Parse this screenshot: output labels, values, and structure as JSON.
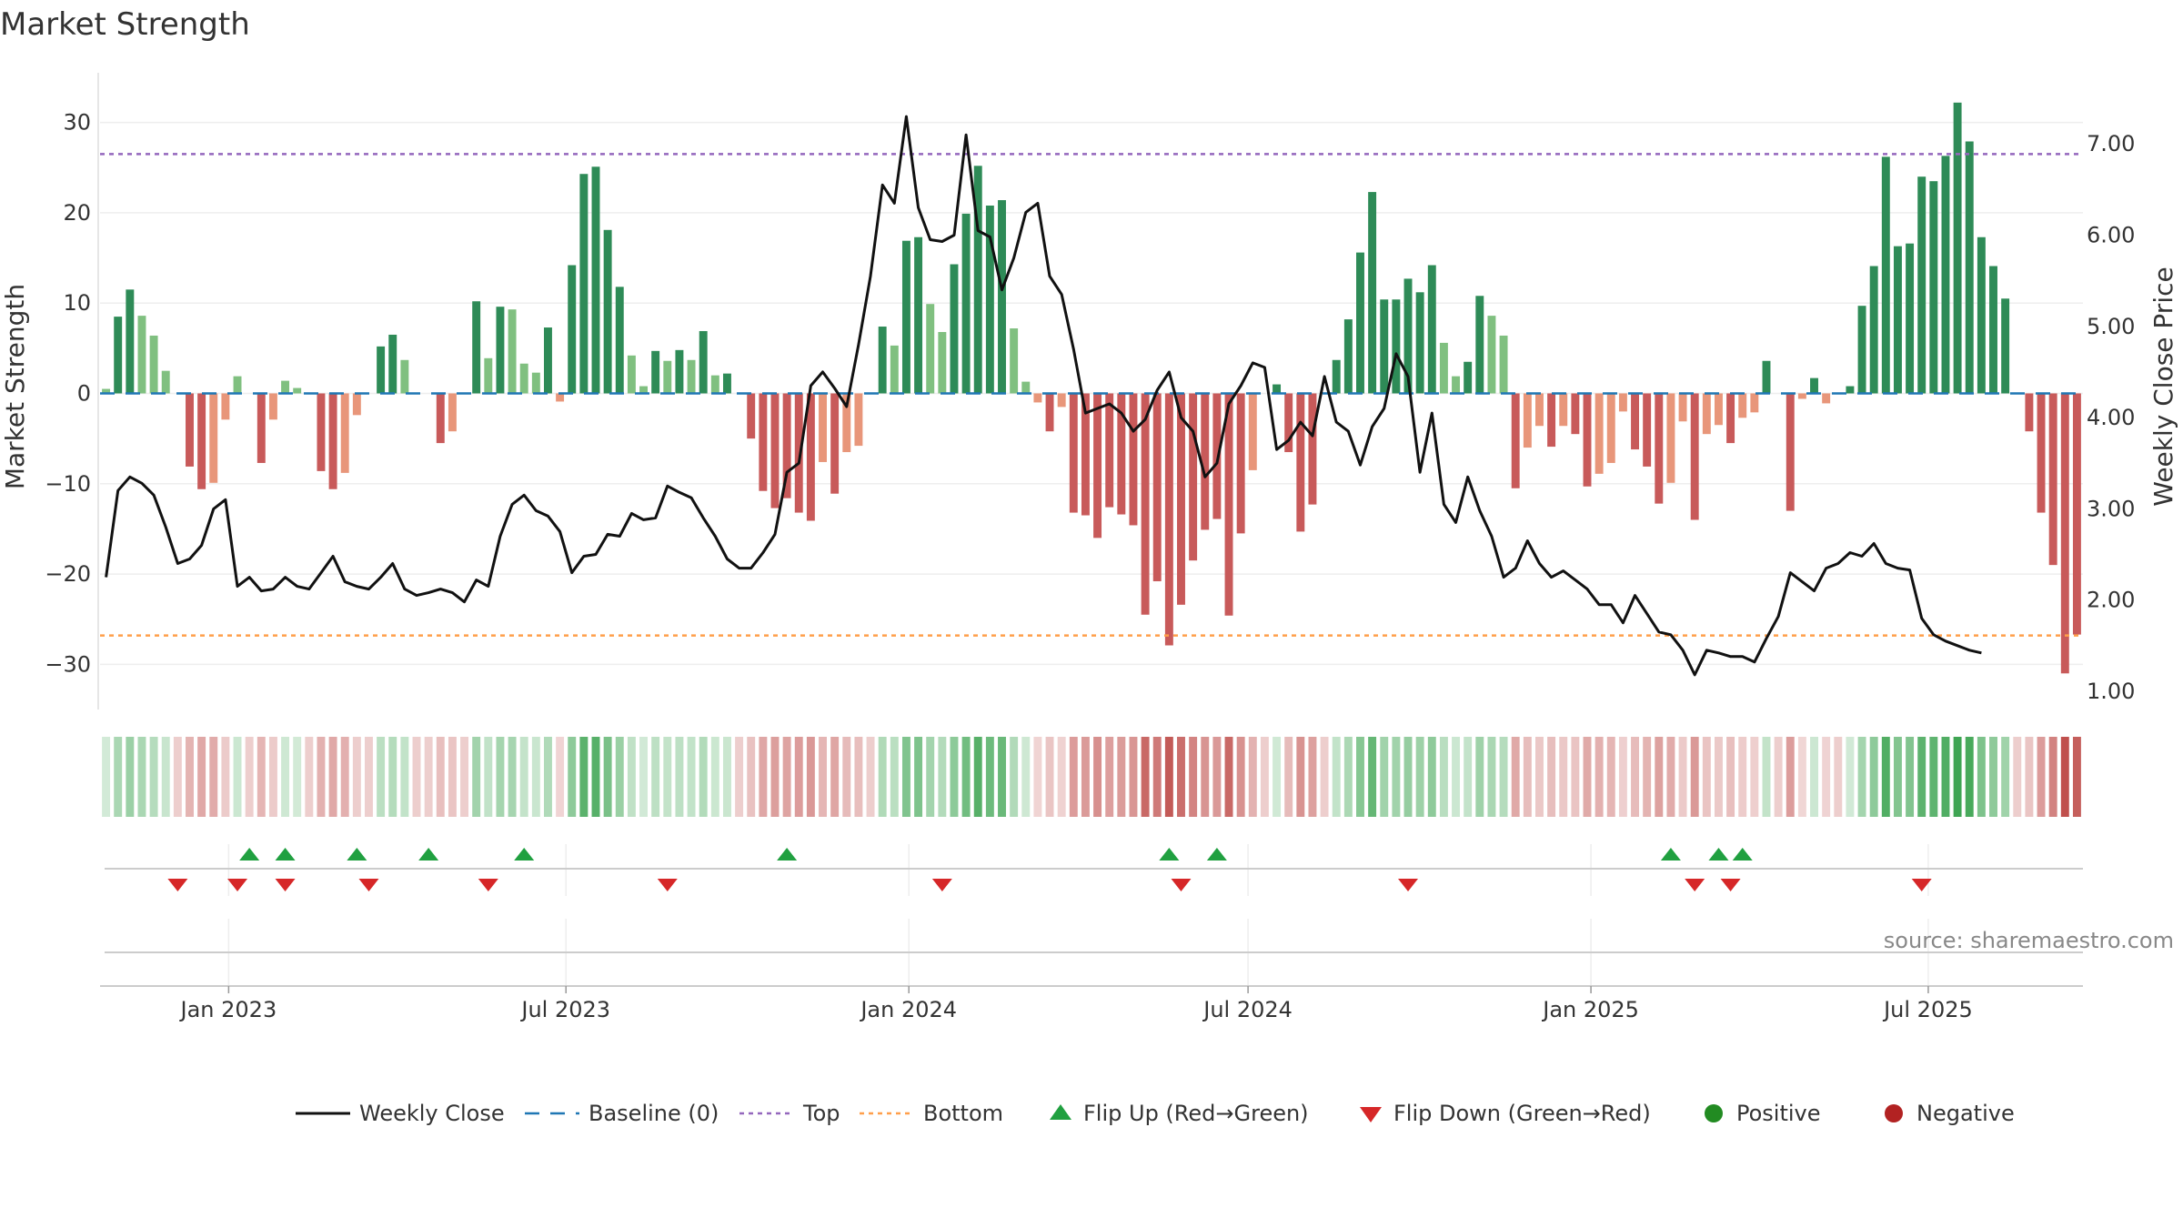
{
  "chart_data": {
    "type": "bar",
    "title": "Market Strength",
    "ylabel_left": "Market Strength",
    "ylabel_right": "Weekly Close Price",
    "source": "source: sharemaestro.com",
    "left_ylim": [
      -35,
      35
    ],
    "left_ticks": [
      30,
      20,
      10,
      0,
      -10,
      -20,
      -30
    ],
    "left_tick_labels": [
      "30",
      "20",
      "10",
      "0",
      "−10",
      "−20",
      "−30"
    ],
    "right_ylim": [
      0.8,
      7.73
    ],
    "right_ticks": [
      7.0,
      6.0,
      5.0,
      4.0,
      3.0,
      2.0,
      1.0
    ],
    "right_tick_labels": [
      "7.00",
      "6.00",
      "5.00",
      "4.00",
      "3.00",
      "2.00",
      "1.00"
    ],
    "top_level": 26.5,
    "bottom_level": -26.8,
    "x_start": "2022-10-24",
    "x_end": "2025-09-22",
    "x_tick_labels": [
      "Jan 2023",
      "Jul 2023",
      "Jan 2024",
      "Jul 2024",
      "Jan 2025",
      "Jul 2025"
    ],
    "x_tick_dates": [
      "2023-01-01",
      "2023-07-01",
      "2024-01-01",
      "2024-07-01",
      "2025-01-01",
      "2025-07-01"
    ],
    "strength": [
      0.5,
      8.5,
      11.5,
      8.6,
      6.4,
      2.5,
      -0.3,
      -8.1,
      -10.6,
      -9.9,
      -2.9,
      1.9,
      -0.3,
      -7.7,
      -2.9,
      1.4,
      0.6,
      -0.3,
      -8.6,
      -10.6,
      -8.8,
      -2.4,
      -0.3,
      5.2,
      6.5,
      3.7,
      -0.3,
      -0.3,
      -5.5,
      -4.2,
      -0.3,
      10.2,
      3.9,
      9.6,
      9.3,
      3.3,
      2.3,
      7.3,
      -0.9,
      14.2,
      24.3,
      25.1,
      18.1,
      11.8,
      4.2,
      0.8,
      4.7,
      3.6,
      4.8,
      3.7,
      6.9,
      2.0,
      2.2,
      -0.3,
      -5.0,
      -10.8,
      -12.7,
      -11.6,
      -13.2,
      -14.1,
      -7.6,
      -11.1,
      -6.5,
      -5.8,
      -0.3,
      7.4,
      5.3,
      16.9,
      17.3,
      9.9,
      6.8,
      14.3,
      19.9,
      25.2,
      20.8,
      21.4,
      7.2,
      1.3,
      -1.0,
      -4.2,
      -1.5,
      -13.2,
      -13.5,
      -16.0,
      -12.6,
      -13.4,
      -14.6,
      -24.5,
      -20.8,
      -27.9,
      -23.4,
      -18.5,
      -15.1,
      -13.9,
      -24.6,
      -15.5,
      -8.5,
      -0.3,
      1.0,
      -6.5,
      -15.3,
      -12.3,
      -0.3,
      3.7,
      8.2,
      15.6,
      22.3,
      10.4,
      10.4,
      12.7,
      11.2,
      14.2,
      5.6,
      1.9,
      3.5,
      10.8,
      8.6,
      6.4,
      -10.5,
      -6.0,
      -3.6,
      -5.9,
      -3.6,
      -4.5,
      -10.3,
      -8.9,
      -7.7,
      -2.0,
      -6.2,
      -8.1,
      -12.2,
      -9.9,
      -3.1,
      -14.0,
      -4.5,
      -3.5,
      -5.5,
      -2.7,
      -2.1,
      3.6,
      -0.3,
      -13.0,
      -0.6,
      1.7,
      -1.1,
      -0.3,
      0.8,
      9.7,
      14.1,
      26.2,
      16.3,
      16.6,
      24.0,
      23.5,
      26.3,
      32.2,
      27.9,
      17.3,
      14.1,
      10.5,
      -0.3,
      -4.2,
      -13.2,
      -19.0,
      -31.0,
      -26.7
    ],
    "weekly_close": [
      2.25,
      3.2,
      3.35,
      3.28,
      3.15,
      2.8,
      2.4,
      2.45,
      2.6,
      3.0,
      3.1,
      2.15,
      2.25,
      2.1,
      2.12,
      2.25,
      2.15,
      2.12,
      2.3,
      2.48,
      2.2,
      2.15,
      2.12,
      2.25,
      2.4,
      2.12,
      2.05,
      2.08,
      2.12,
      2.08,
      1.98,
      2.22,
      2.15,
      2.7,
      3.05,
      3.15,
      2.98,
      2.92,
      2.75,
      2.3,
      2.48,
      2.5,
      2.72,
      2.7,
      2.95,
      2.88,
      2.9,
      3.25,
      3.18,
      3.12,
      2.9,
      2.7,
      2.45,
      2.35,
      2.35,
      2.52,
      2.72,
      3.4,
      3.5,
      4.35,
      4.5,
      4.32,
      4.12,
      4.8,
      5.55,
      6.55,
      6.35,
      7.3,
      6.3,
      5.95,
      5.93,
      6.0,
      7.1,
      6.05,
      5.98,
      5.4,
      5.75,
      6.25,
      6.35,
      5.55,
      5.35,
      4.75,
      4.05,
      4.1,
      4.15,
      4.05,
      3.85,
      3.98,
      4.3,
      4.5,
      4.0,
      3.85,
      3.35,
      3.5,
      4.15,
      4.35,
      4.6,
      4.55,
      3.65,
      3.75,
      3.95,
      3.8,
      4.45,
      3.95,
      3.85,
      3.48,
      3.9,
      4.1,
      4.7,
      4.45,
      3.4,
      4.05,
      3.05,
      2.85,
      3.35,
      2.98,
      2.7,
      2.25,
      2.35,
      2.65,
      2.4,
      2.25,
      2.32,
      2.22,
      2.12,
      1.95,
      1.95,
      1.75,
      2.05,
      1.85,
      1.65,
      1.62,
      1.45,
      1.18,
      1.45,
      1.42,
      1.38,
      1.38,
      1.32,
      1.58,
      1.82,
      2.3,
      2.2,
      2.1,
      2.35,
      2.4,
      2.52,
      2.48,
      2.62,
      2.4,
      2.35,
      2.33,
      1.8,
      1.62,
      1.55,
      1.5,
      1.45,
      1.42
    ],
    "flip_up_index": [
      12,
      15,
      21,
      27,
      35,
      57,
      89,
      93,
      131,
      135,
      137
    ],
    "flip_down_index": [
      6,
      11,
      15,
      22,
      32,
      47,
      70,
      90,
      109,
      133,
      136,
      152
    ],
    "colors": {
      "positive_strong": "#2e8b57",
      "positive_weak": "#80c080",
      "negative_strong": "#c85a5a",
      "negative_weak": "#e8967a",
      "line": "#111111",
      "baseline": "#1f77b4",
      "top": "#9467bd",
      "bottom": "#ff9f4a",
      "flip_up": "#20a040",
      "flip_down": "#d62728",
      "positive_dot": "#228b22",
      "negative_dot": "#b22222"
    },
    "legend": [
      {
        "label": "Weekly Close",
        "kind": "line"
      },
      {
        "label": "Baseline (0)",
        "kind": "baseline"
      },
      {
        "label": "Top",
        "kind": "top"
      },
      {
        "label": "Bottom",
        "kind": "bottom"
      },
      {
        "label": "Flip Up (Red→Green)",
        "kind": "up"
      },
      {
        "label": "Flip Down (Green→Red)",
        "kind": "down"
      },
      {
        "label": "Positive",
        "kind": "pos"
      },
      {
        "label": "Negative",
        "kind": "neg"
      }
    ]
  }
}
